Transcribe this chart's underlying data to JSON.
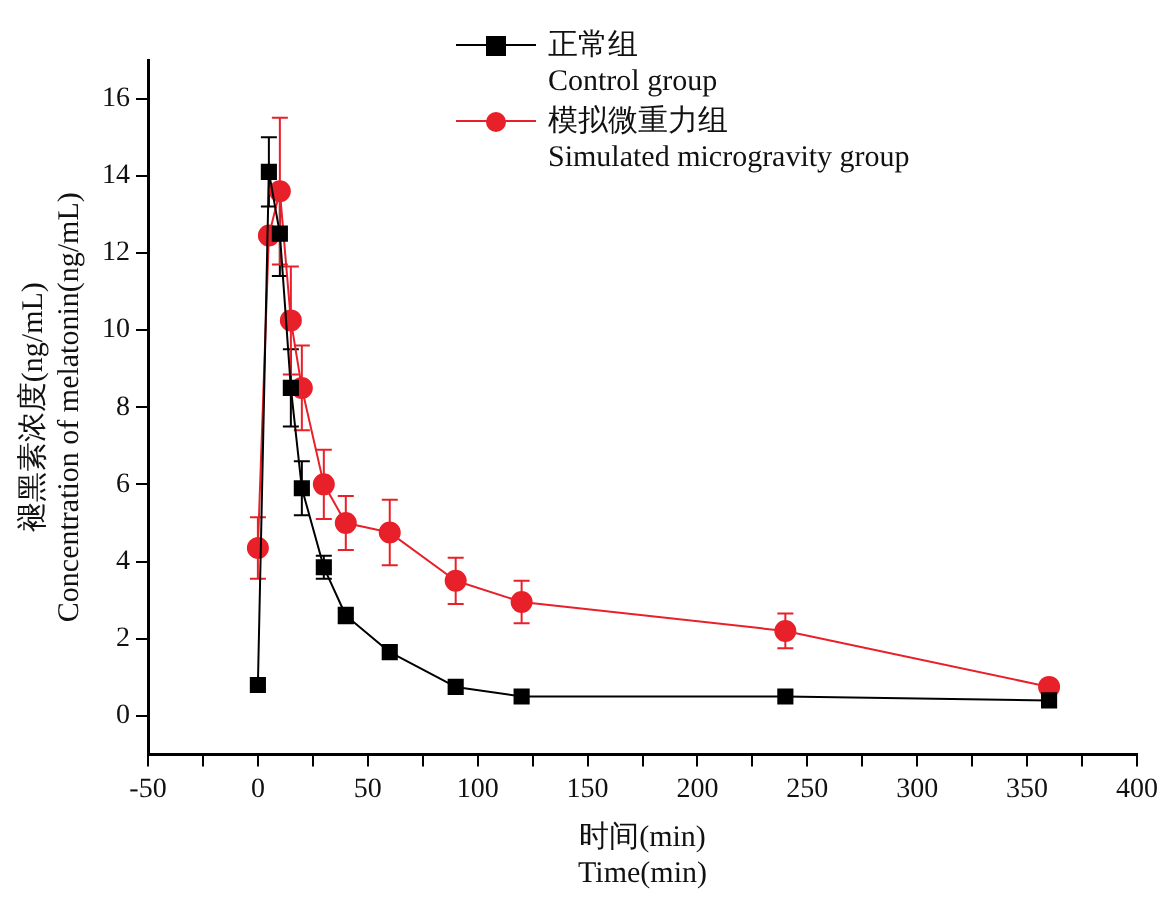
{
  "chart_data": {
    "type": "line",
    "xlabel": "时间(min)\nTime(min)",
    "ylabel": "褪黑素浓度(ng/mL)\nConcentration of melatonin(ng/mL)",
    "x": [
      0,
      5,
      10,
      15,
      20,
      30,
      40,
      60,
      90,
      120,
      240,
      360
    ],
    "series": [
      {
        "name": "正常组\nControl group",
        "color": "#000000",
        "marker": "square",
        "values": [
          0.8,
          14.1,
          12.5,
          8.5,
          5.9,
          3.85,
          2.6,
          1.65,
          0.75,
          0.5,
          0.5,
          0.4
        ],
        "errors": [
          null,
          0.9,
          1.1,
          1.0,
          0.7,
          0.3,
          0.2,
          null,
          null,
          null,
          null,
          null
        ]
      },
      {
        "name": "模拟微重力组\nSimulated microgravity group",
        "color": "#e8202a",
        "marker": "circle",
        "values": [
          4.35,
          12.45,
          13.6,
          10.25,
          8.5,
          6.0,
          5.0,
          4.75,
          3.5,
          2.95,
          2.2,
          0.75
        ],
        "errors": [
          0.8,
          null,
          1.9,
          1.4,
          1.1,
          0.9,
          0.7,
          0.85,
          0.6,
          0.55,
          0.45,
          null
        ]
      }
    ],
    "xlim": [
      -50,
      400
    ],
    "xticks": [
      -50,
      {
        "value": -25,
        "label": null
      },
      0,
      {
        "value": 25,
        "label": null
      },
      50,
      {
        "value": 75,
        "label": null
      },
      100,
      {
        "value": 125,
        "label": null
      },
      150,
      {
        "value": 175,
        "label": null
      },
      200,
      {
        "value": 225,
        "label": null
      },
      250,
      {
        "value": 275,
        "label": null
      },
      300,
      {
        "value": 325,
        "label": null
      },
      350,
      {
        "value": 375,
        "label": null
      },
      400
    ],
    "ylim": [
      -1,
      17
    ],
    "yticks": [
      0,
      2,
      4,
      6,
      8,
      10,
      12,
      14,
      16
    ],
    "grid": false,
    "legend": "top",
    "line_style": "solid"
  }
}
